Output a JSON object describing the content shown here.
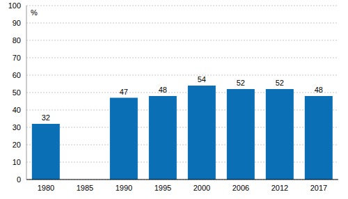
{
  "chart_data": {
    "type": "bar",
    "y_label": "%",
    "categories": [
      "1980",
      "1985",
      "1990",
      "1995",
      "2000",
      "2006",
      "2012",
      "2017"
    ],
    "values": [
      32,
      null,
      47,
      48,
      54,
      52,
      52,
      48
    ],
    "color": "#0a6fb5",
    "ylim": [
      0,
      100
    ],
    "yticks": [
      0,
      10,
      20,
      30,
      40,
      50,
      60,
      70,
      80,
      90,
      100
    ],
    "grid": true,
    "data_labels": true
  }
}
